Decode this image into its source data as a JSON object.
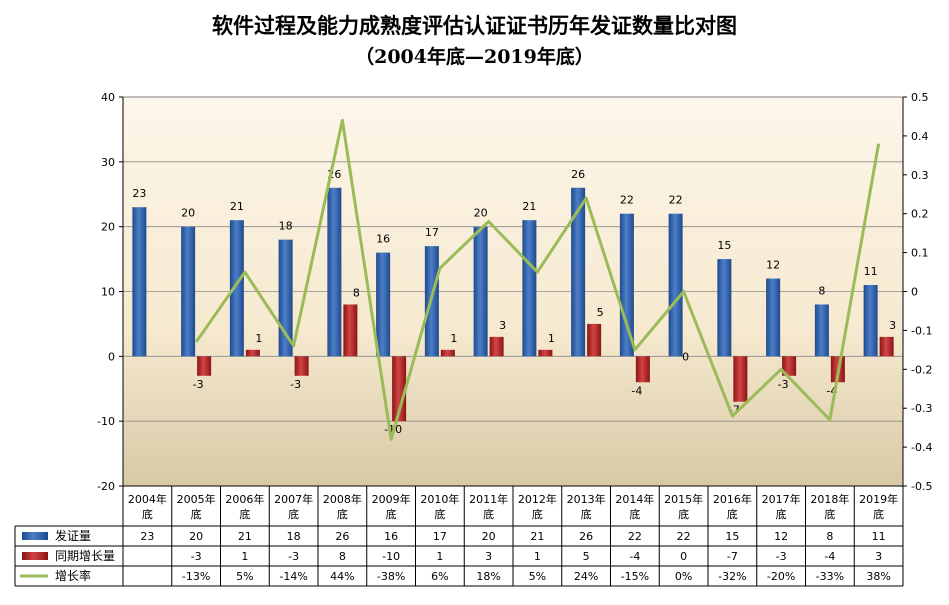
{
  "chart_data": {
    "type": "bar",
    "title": "软件过程及能力成熟度评估认证证书历年发证数量比对图",
    "subtitle": "（2004年底—2019年底）",
    "categories": [
      "2004年底",
      "2005年底",
      "2006年底",
      "2007年底",
      "2008年底",
      "2009年底",
      "2010年底",
      "2011年底",
      "2012年底",
      "2013年底",
      "2014年底",
      "2015年底",
      "2016年底",
      "2017年底",
      "2018年底",
      "2019年底"
    ],
    "series": [
      {
        "name": "发证量",
        "kind": "bar",
        "color": "#2e5b9e",
        "values": [
          23,
          20,
          21,
          18,
          26,
          16,
          17,
          20,
          21,
          26,
          22,
          22,
          15,
          12,
          8,
          11
        ],
        "labels": [
          "23",
          "20",
          "21",
          "18",
          "26",
          "16",
          "17",
          "20",
          "21",
          "26",
          "22",
          "22",
          "15",
          "12",
          "8",
          "11"
        ]
      },
      {
        "name": "同期增长量",
        "kind": "bar",
        "color": "#b22222",
        "values": [
          null,
          -3,
          1,
          -3,
          8,
          -10,
          1,
          3,
          1,
          5,
          -4,
          0,
          -7,
          -3,
          -4,
          3
        ],
        "labels": [
          "",
          "-3",
          "1",
          "-3",
          "8",
          "-10",
          "1",
          "3",
          "1",
          "5",
          "-4",
          "0",
          "-7",
          "-3",
          "-4",
          "3"
        ]
      },
      {
        "name": "增长率",
        "kind": "line",
        "axis": "right",
        "color": "#9bbb59",
        "values": [
          null,
          -0.13,
          0.05,
          -0.14,
          0.44,
          -0.38,
          0.06,
          0.18,
          0.05,
          0.24,
          -0.15,
          0,
          -0.32,
          -0.2,
          -0.33,
          0.38
        ],
        "labels": [
          "",
          "-13%",
          "5%",
          "-14%",
          "44%",
          "-38%",
          "6%",
          "18%",
          "5%",
          "24%",
          "-15%",
          "0%",
          "-32%",
          "-20%",
          "-33%",
          "38%"
        ]
      }
    ],
    "y_left": {
      "min": -20,
      "max": 40,
      "ticks": [
        -20,
        -10,
        0,
        10,
        20,
        30,
        40
      ]
    },
    "y_right": {
      "min": -0.5,
      "max": 0.5,
      "ticks": [
        "-0.5",
        "-0.4",
        "-0.3",
        "-0.2",
        "-0.1",
        "0",
        "0.1",
        "0.2",
        "0.3",
        "0.4",
        "0.5"
      ]
    },
    "grid": true,
    "legend": "data-table"
  }
}
